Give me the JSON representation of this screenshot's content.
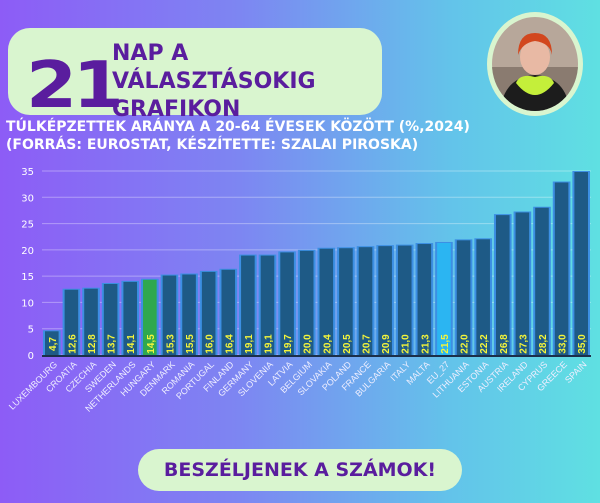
{
  "header": {
    "days": "21",
    "title_line1": "NAP A VÁLASZTÁSOKIG",
    "title_line2": "GRAFIKON"
  },
  "subtitle": {
    "line1": "TÚLKÉPZETTEK ARÁNYA A 20-64 ÉVESEK KÖZÖTT (%,2024)",
    "line2": "(FORRÁS: EUROSTAT, KÉSZÍTETTE: SZALAI PIROSKA)"
  },
  "footer": {
    "label": "BESZÉLJENEK A SZÁMOK!"
  },
  "colors": {
    "bar": "#1e5a86",
    "bar_edge": "#3c8fe3",
    "highlight_hungary": "#2fa84f",
    "highlight_eu": "#2bb5f2",
    "label": "#f4f53a",
    "purple": "#5a1d9e"
  },
  "chart_data": {
    "type": "bar",
    "title": "TÚLKÉPZETTEK ARÁNYA A 20-64 ÉVESEK KÖZÖTT (%,2024)",
    "xlabel": "",
    "ylabel": "",
    "ylim": [
      0,
      35
    ],
    "yticks": [
      "0",
      "5",
      "10",
      "15",
      "20",
      "25",
      "30",
      "35"
    ],
    "grid": true,
    "categories": [
      "LUXEMBOURG",
      "CROATIA",
      "CZECHIA",
      "SWEDEN",
      "NETHERLANDS",
      "HUNGARY",
      "DENMARK",
      "ROMANIA",
      "PORTUGAL",
      "FINLAND",
      "GERMANY",
      "SLOVENIA",
      "LATVIA",
      "BELGIUM",
      "SLOVAKIA",
      "POLAND",
      "FRANCE",
      "BULGARIA",
      "ITALY",
      "MALTA",
      "EU_27",
      "LITHUANIA",
      "ESTONIA",
      "AUSTRIA",
      "IRELAND",
      "CYPRUS",
      "GREECE",
      "SPAIN"
    ],
    "values": [
      4.7,
      12.6,
      12.8,
      13.7,
      14.1,
      14.5,
      15.3,
      15.5,
      16.0,
      16.4,
      19.1,
      19.1,
      19.7,
      20.0,
      20.4,
      20.5,
      20.7,
      20.9,
      21.0,
      21.3,
      21.5,
      22.0,
      22.2,
      26.8,
      27.3,
      28.2,
      33.0,
      35.0
    ],
    "value_labels": [
      "4,7",
      "12,6",
      "12,8",
      "13,7",
      "14,1",
      "14,5",
      "15,3",
      "15,5",
      "16,0",
      "16,4",
      "19,1",
      "19,1",
      "19,7",
      "20,0",
      "20,4",
      "20,5",
      "20,7",
      "20,9",
      "21,0",
      "21,3",
      "21,5",
      "22,0",
      "22,2",
      "26,8",
      "27,3",
      "28,2",
      "33,0",
      "35,0"
    ],
    "highlight": {
      "HUNGARY": "green",
      "EU_27": "lightblue"
    }
  }
}
